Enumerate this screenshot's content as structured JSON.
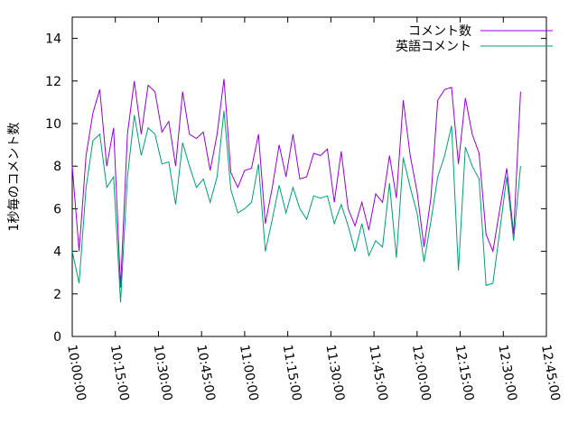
{
  "chart_data": {
    "type": "line",
    "y_label": "1秒毎のコメント数",
    "x": [
      "10:00:00",
      "10:02:24",
      "10:04:48",
      "10:07:12",
      "10:09:36",
      "10:12:00",
      "10:14:24",
      "10:16:48",
      "10:19:12",
      "10:21:36",
      "10:24:00",
      "10:26:24",
      "10:28:48",
      "10:31:12",
      "10:33:36",
      "10:36:00",
      "10:38:24",
      "10:40:48",
      "10:43:12",
      "10:45:36",
      "10:48:00",
      "10:50:24",
      "10:52:48",
      "10:55:12",
      "10:57:36",
      "11:00:00",
      "11:02:24",
      "11:04:48",
      "11:07:12",
      "11:09:36",
      "11:12:00",
      "11:14:24",
      "11:16:48",
      "11:19:12",
      "11:21:36",
      "11:24:00",
      "11:26:24",
      "11:28:48",
      "11:31:12",
      "11:33:36",
      "11:36:00",
      "11:38:24",
      "11:40:48",
      "11:43:12",
      "11:45:36",
      "11:48:00",
      "11:50:24",
      "11:52:48",
      "11:55:12",
      "11:57:36",
      "12:00:00",
      "12:02:24",
      "12:04:48",
      "12:07:12",
      "12:09:36",
      "12:12:00",
      "12:14:24",
      "12:16:48",
      "12:19:12",
      "12:21:36",
      "12:24:00",
      "12:26:24",
      "12:28:48",
      "12:31:12",
      "12:33:36",
      "12:36:00"
    ],
    "series": [
      {
        "name": "コメント数",
        "color": "#9400d3",
        "values": [
          8.0,
          4.0,
          8.5,
          10.5,
          11.6,
          8.0,
          9.8,
          2.3,
          9.5,
          12.0,
          9.5,
          11.8,
          11.5,
          9.6,
          10.1,
          8.0,
          11.5,
          9.5,
          9.3,
          9.6,
          7.8,
          9.5,
          12.1,
          7.7,
          7.0,
          7.8,
          7.9,
          9.5,
          5.3,
          7.0,
          9.0,
          7.5,
          9.5,
          7.4,
          7.5,
          8.6,
          8.5,
          8.8,
          6.3,
          8.7,
          6.0,
          5.2,
          6.3,
          5.0,
          6.7,
          6.3,
          8.5,
          6.5,
          11.1,
          8.5,
          6.8,
          4.2,
          6.5,
          11.1,
          11.6,
          11.7,
          8.1,
          11.2,
          9.5,
          8.6,
          4.8,
          4.0,
          6.0,
          7.9,
          4.8,
          11.5
        ]
      },
      {
        "name": "英語コメント",
        "color": "#009e73",
        "values": [
          4.0,
          2.5,
          7.0,
          9.2,
          9.5,
          7.0,
          7.5,
          1.6,
          7.5,
          10.4,
          8.5,
          9.8,
          9.5,
          8.1,
          8.2,
          6.2,
          9.1,
          8.0,
          7.0,
          7.4,
          6.3,
          7.5,
          10.6,
          6.9,
          5.8,
          6.0,
          6.3,
          8.1,
          4.0,
          5.5,
          7.1,
          5.8,
          7.0,
          6.0,
          5.5,
          6.6,
          6.5,
          6.6,
          5.3,
          6.2,
          5.2,
          4.0,
          5.3,
          3.8,
          4.5,
          4.2,
          7.2,
          3.7,
          8.4,
          7.0,
          5.8,
          3.5,
          5.4,
          7.5,
          8.5,
          9.9,
          3.1,
          8.9,
          8.0,
          7.4,
          2.4,
          2.5,
          5.0,
          7.5,
          4.5,
          8.0
        ]
      }
    ],
    "xlim": [
      "10:00:00",
      "12:45:00"
    ],
    "xticks": [
      "10:00:00",
      "10:15:00",
      "10:30:00",
      "10:45:00",
      "11:00:00",
      "11:15:00",
      "11:30:00",
      "11:45:00",
      "12:00:00",
      "12:15:00",
      "12:30:00",
      "12:45:00"
    ],
    "ylim": [
      0,
      15
    ],
    "yticks": [
      0,
      2,
      4,
      6,
      8,
      10,
      12,
      14
    ],
    "legend": "top-right"
  }
}
